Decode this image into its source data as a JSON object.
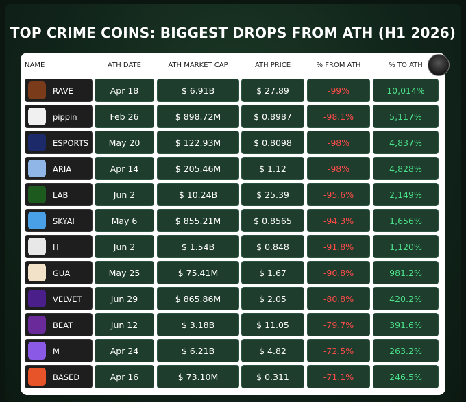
{
  "header": {
    "title": "TOP CRIME COINS: BIGGEST DROPS FROM ATH (H1 2026)"
  },
  "table": {
    "columns": [
      "NAME",
      "ATH DATE",
      "ATH MARKET CAP",
      "ATH PRICE",
      "% FROM ATH",
      "% TO ATH"
    ],
    "rows": [
      [
        "RAVE",
        "Apr 18",
        "$ 6.91B",
        "$ 27.89",
        "-99%",
        "10,014%"
      ],
      [
        "pippin",
        "Feb 26",
        "$ 898.72M",
        "$ 0.8987",
        "-98.1%",
        "5,117%"
      ],
      [
        "ESPORTS",
        "May 20",
        "$ 122.93M",
        "$ 0.8098",
        "-98%",
        "4,837%"
      ],
      [
        "ARIA",
        "Apr 14",
        "$ 205.46M",
        "$ 1.12",
        "-98%",
        "4,828%"
      ],
      [
        "LAB",
        "Jun 2",
        "$ 10.24B",
        "$ 25.39",
        "-95.6%",
        "2,149%"
      ],
      [
        "SKYAI",
        "May 6",
        "$ 855.21M",
        "$ 0.8565",
        "-94.3%",
        "1,656%"
      ],
      [
        "H",
        "Jun 2",
        "$ 1.54B",
        "$ 0.848",
        "-91.8%",
        "1,120%"
      ],
      [
        "GUA",
        "May 25",
        "$ 75.41M",
        "$ 1.67",
        "-90.8%",
        "981.2%"
      ],
      [
        "VELVET",
        "Jun 29",
        "$ 865.86M",
        "$ 2.05",
        "-80.8%",
        "420.2%"
      ],
      [
        "BEAT",
        "Jun 12",
        "$ 3.18B",
        "$ 11.05",
        "-79.7%",
        "391.6%"
      ],
      [
        "M",
        "Apr 24",
        "$ 6.21B",
        "$ 4.82",
        "-72.5%",
        "263.2%"
      ],
      [
        "BASED",
        "Apr 16",
        "$ 73.10M",
        "$ 0.311",
        "-71.1%",
        "246.5%"
      ]
    ]
  }
}
